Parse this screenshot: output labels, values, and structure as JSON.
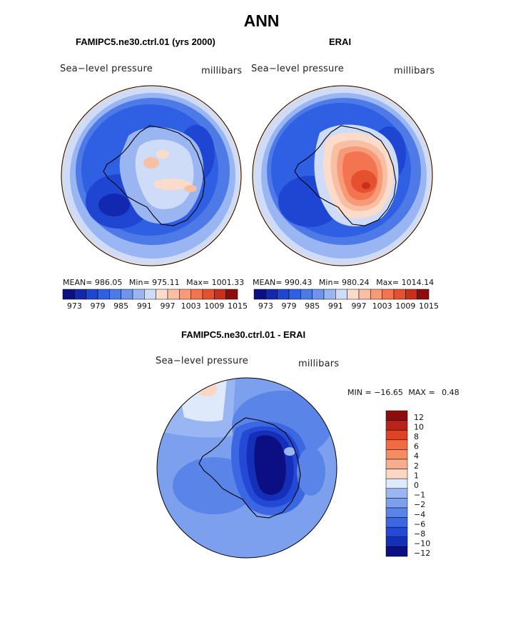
{
  "title": "ANN",
  "panels": [
    {
      "title": "FAMIPC5.ne30.ctrl.01 (yrs 2000)",
      "left_label": "Sea−level pressure",
      "right_label": "millibars",
      "stats": {
        "mean_label": "MEAN=",
        "mean": "986.05",
        "min_label": "Min=",
        "min": "975.11",
        "max_label": "Max=",
        "max": "1001.33"
      }
    },
    {
      "title": "ERAI",
      "left_label": "Sea−level pressure",
      "right_label": "millibars",
      "stats": {
        "mean_label": "MEAN=",
        "mean": "990.43",
        "min_label": "Min=",
        "min": "980.24",
        "max_label": "Max=",
        "max": "1014.14"
      }
    },
    {
      "title": "FAMIPC5.ne30.ctrl.01 - ERAI",
      "left_label": "Sea−level pressure",
      "right_label": "millibars",
      "stats": {
        "min_label": "MIN =",
        "min": "−16.65",
        "max_label": "MAX =",
        "max": "0.48"
      }
    }
  ],
  "chart_data": [
    {
      "type": "heatmap",
      "title": "FAMIPC5.ne30.ctrl.01 (yrs 2000)",
      "variable": "Sea−level pressure",
      "units": "millibars",
      "projection": "south polar stereographic",
      "stats": {
        "mean": 986.05,
        "min": 975.11,
        "max": 1001.33
      },
      "colorbar_ticks": [
        "973",
        "979",
        "985",
        "991",
        "997",
        "1003",
        "1009",
        "1015"
      ],
      "contour_levels": [
        973,
        976,
        979,
        982,
        985,
        988,
        991,
        994,
        997,
        1000,
        1003,
        1006,
        1009,
        1012,
        1015
      ]
    },
    {
      "type": "heatmap",
      "title": "ERAI",
      "variable": "Sea−level pressure",
      "units": "millibars",
      "projection": "south polar stereographic",
      "stats": {
        "mean": 990.43,
        "min": 980.24,
        "max": 1014.14
      },
      "colorbar_ticks": [
        "973",
        "979",
        "985",
        "991",
        "997",
        "1003",
        "1009",
        "1015"
      ],
      "contour_levels": [
        973,
        976,
        979,
        982,
        985,
        988,
        991,
        994,
        997,
        1000,
        1003,
        1006,
        1009,
        1012,
        1015
      ]
    },
    {
      "type": "heatmap",
      "title": "FAMIPC5.ne30.ctrl.01 - ERAI",
      "variable": "Sea−level pressure",
      "units": "millibars",
      "projection": "south polar stereographic",
      "stats": {
        "min": -16.65,
        "max": 0.48
      },
      "colorbar_ticks": [
        "12",
        "10",
        "8",
        "6",
        "4",
        "2",
        "1",
        "0",
        "−1",
        "−2",
        "−4",
        "−6",
        "−8",
        "−10",
        "−12"
      ],
      "contour_levels": [
        12,
        10,
        8,
        6,
        4,
        2,
        1,
        0,
        -1,
        -2,
        -4,
        -6,
        -8,
        -10,
        -12
      ]
    }
  ],
  "colors": {
    "mean_scale": [
      "#0b0f82",
      "#1228b0",
      "#1e46d2",
      "#2f5fe2",
      "#4e7ae8",
      "#6f94ec",
      "#9ab6f2",
      "#cfdcf7",
      "#fbdccb",
      "#f9bfa4",
      "#f69a77",
      "#f27450",
      "#e5502e",
      "#c8301c",
      "#8f0c0c"
    ],
    "diff_scale": [
      "#8f0c0c",
      "#b9241a",
      "#e04226",
      "#f06a43",
      "#f58c63",
      "#f8ad8d",
      "#fbd6c3",
      "#deeafa",
      "#9ab6f2",
      "#7ca0ee",
      "#5b84e8",
      "#3b68e2",
      "#2349d6",
      "#1430b8",
      "#0b0f82"
    ]
  }
}
